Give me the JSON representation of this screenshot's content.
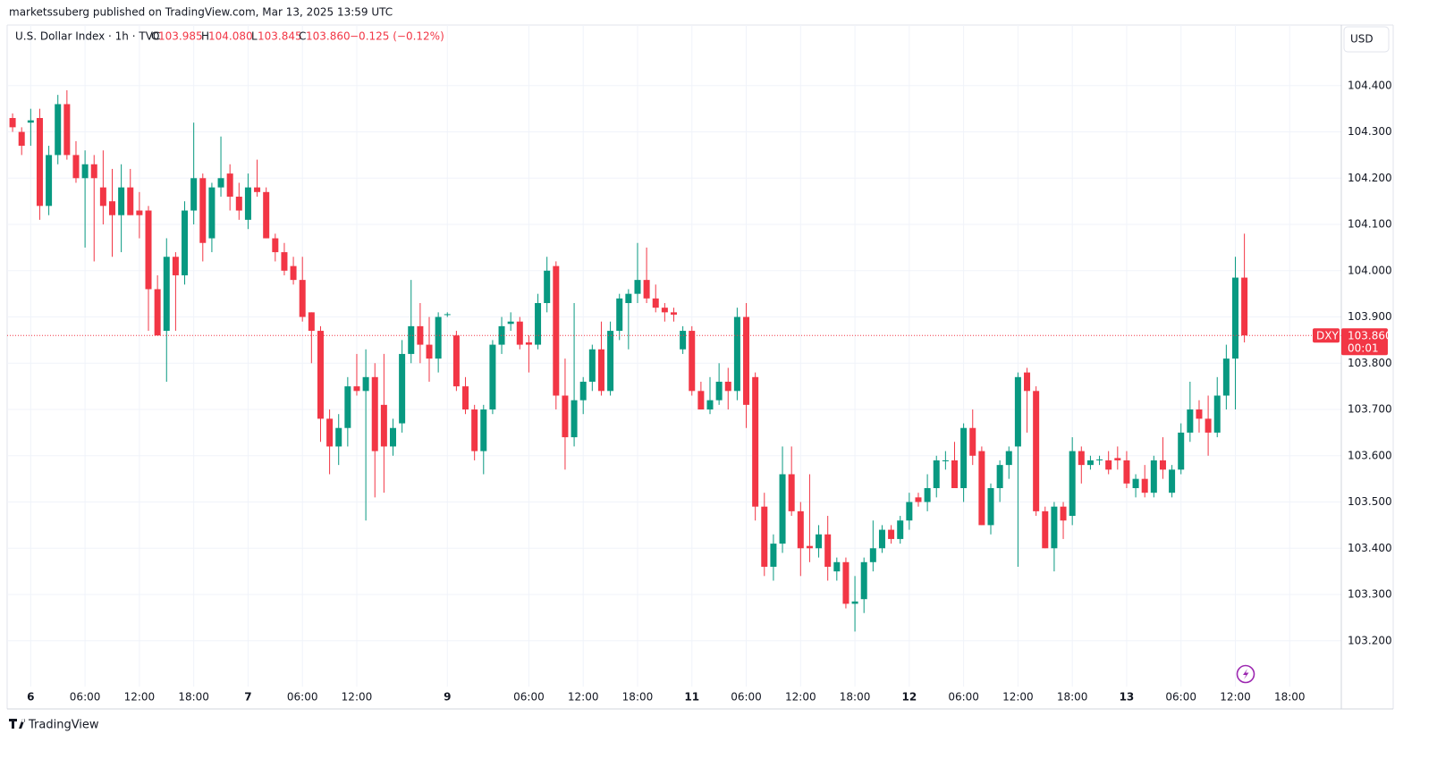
{
  "header": {
    "publisher": "marketssuberg published on TradingView.com, Mar 13, 2025 13:59 UTC"
  },
  "chart_data": {
    "type": "candlestick",
    "title": "U.S. Dollar Index · 1h · TVC",
    "legend": {
      "o": "O",
      "open": "103.985",
      "h": "H",
      "high": "104.080",
      "l": "L",
      "low": "103.845",
      "c": "C",
      "close": "103.860",
      "change": "−0.125 (−0.12%)"
    },
    "currency": "USD",
    "symbol": "DXY",
    "last_price": {
      "value": 103.86,
      "label": "103.860"
    },
    "countdown": "00:01",
    "up_color": "#089981",
    "down_color": "#f23645",
    "grid": true,
    "x": [
      0,
      1,
      2,
      3,
      4,
      5,
      6,
      7,
      8,
      9,
      10,
      11,
      12,
      13,
      14,
      15,
      16,
      17,
      18,
      19,
      20,
      21,
      22,
      23,
      24,
      25,
      26,
      27,
      28,
      29,
      30,
      31,
      32,
      33,
      34,
      35,
      36,
      37,
      38,
      39,
      40,
      41,
      42,
      43,
      44,
      45,
      46,
      47,
      48,
      49,
      50,
      51,
      52,
      53,
      54,
      55,
      56,
      57,
      58,
      59,
      60,
      61,
      62,
      63,
      64,
      65,
      66,
      67,
      68,
      69,
      70,
      71,
      72,
      73,
      74,
      75,
      76,
      77,
      78,
      79,
      80,
      81,
      82,
      83,
      84,
      85,
      86,
      87,
      88,
      89,
      90,
      91,
      92,
      93,
      94,
      95,
      96,
      97,
      98,
      99,
      100,
      101,
      102,
      103,
      104,
      105,
      106,
      107,
      108,
      109,
      110,
      111,
      112,
      113,
      114,
      115,
      116,
      117,
      118,
      119,
      120,
      121,
      122,
      123,
      124,
      125,
      126,
      127,
      128,
      129,
      130,
      131,
      132,
      133,
      134,
      135,
      136
    ],
    "open": [
      104.33,
      104.3,
      104.32,
      104.33,
      104.14,
      104.25,
      104.36,
      104.25,
      104.2,
      104.23,
      104.18,
      104.15,
      104.12,
      104.18,
      104.13,
      104.13,
      103.96,
      103.87,
      104.03,
      103.99,
      104.13,
      104.2,
      104.07,
      104.18,
      104.21,
      104.16,
      104.11,
      104.18,
      104.17,
      104.07,
      104.04,
      104.01,
      103.98,
      103.91,
      103.87,
      103.68,
      103.62,
      103.66,
      103.75,
      103.74,
      103.77,
      103.71,
      103.62,
      103.67,
      103.82,
      103.88,
      103.84,
      103.81,
      103.905,
      103.86,
      103.75,
      103.7,
      103.61,
      103.7,
      103.84,
      103.885,
      103.89,
      103.845,
      103.84,
      103.93,
      104.01,
      103.73,
      103.64,
      103.72,
      103.76,
      103.83,
      103.74,
      103.87,
      103.93,
      103.95,
      103.98,
      103.94,
      103.92,
      103.91,
      103.83,
      103.87,
      103.74,
      103.7,
      103.72,
      103.76,
      103.74,
      103.9,
      103.77,
      103.49,
      103.36,
      103.41,
      103.56,
      103.48,
      103.405,
      103.4,
      103.43,
      103.35,
      103.37,
      103.28,
      103.29,
      103.37,
      103.4,
      103.44,
      103.42,
      103.46,
      103.51,
      103.5,
      103.53,
      103.588,
      103.59,
      103.53,
      103.66,
      103.61,
      103.45,
      103.53,
      103.58,
      103.62,
      103.78,
      103.74,
      103.48,
      103.4,
      103.49,
      103.47,
      103.61,
      103.58,
      103.59,
      103.59,
      103.595,
      103.59,
      103.53,
      103.55,
      103.52,
      103.59,
      103.52,
      103.57,
      103.65,
      103.7,
      103.68,
      103.65,
      103.73,
      103.81,
      103.985
    ],
    "high": [
      104.34,
      104.31,
      104.35,
      104.35,
      104.27,
      104.38,
      104.39,
      104.28,
      104.26,
      104.25,
      104.26,
      104.22,
      104.23,
      104.22,
      104.17,
      104.14,
      103.99,
      104.07,
      104.04,
      104.15,
      104.32,
      104.21,
      104.19,
      104.29,
      104.23,
      104.19,
      104.21,
      104.24,
      104.18,
      104.08,
      104.06,
      104.03,
      104.03,
      103.91,
      103.88,
      103.7,
      103.69,
      103.77,
      103.82,
      103.83,
      103.8,
      103.82,
      103.68,
      103.85,
      103.98,
      103.93,
      103.9,
      103.91,
      103.91,
      103.87,
      103.77,
      103.71,
      103.71,
      103.85,
      103.9,
      103.91,
      103.9,
      103.86,
      103.95,
      104.03,
      104.02,
      103.81,
      103.93,
      103.77,
      103.84,
      103.89,
      103.89,
      103.95,
      103.96,
      104.06,
      104.05,
      103.97,
      103.93,
      103.92,
      103.88,
      103.88,
      103.76,
      103.77,
      103.8,
      103.79,
      103.92,
      103.93,
      103.78,
      103.52,
      103.43,
      103.62,
      103.62,
      103.5,
      103.56,
      103.45,
      103.47,
      103.38,
      103.38,
      103.34,
      103.38,
      103.46,
      103.45,
      103.45,
      103.47,
      103.52,
      103.52,
      103.56,
      103.6,
      103.61,
      103.63,
      103.67,
      103.7,
      103.62,
      103.54,
      103.59,
      103.62,
      103.78,
      103.79,
      103.75,
      103.49,
      103.5,
      103.5,
      103.64,
      103.62,
      103.6,
      103.6,
      103.61,
      103.62,
      103.61,
      103.56,
      103.58,
      103.6,
      103.64,
      103.58,
      103.67,
      103.76,
      103.72,
      103.73,
      103.77,
      103.84,
      104.03,
      104.08
    ],
    "low": [
      104.3,
      104.25,
      104.27,
      104.11,
      104.12,
      104.23,
      104.24,
      104.19,
      104.05,
      104.02,
      104.1,
      104.03,
      104.04,
      104.12,
      104.07,
      103.87,
      103.86,
      103.76,
      103.87,
      103.97,
      104.1,
      104.02,
      104.04,
      104.16,
      104.13,
      104.11,
      104.09,
      104.16,
      104.07,
      104.02,
      103.99,
      103.97,
      103.89,
      103.8,
      103.63,
      103.56,
      103.58,
      103.62,
      103.73,
      103.46,
      103.51,
      103.52,
      103.6,
      103.65,
      103.8,
      103.8,
      103.76,
      103.78,
      103.9,
      103.74,
      103.69,
      103.59,
      103.56,
      103.69,
      103.82,
      103.87,
      103.83,
      103.78,
      103.83,
      103.91,
      103.7,
      103.57,
      103.62,
      103.69,
      103.74,
      103.73,
      103.73,
      103.85,
      103.83,
      103.93,
      103.93,
      103.91,
      103.89,
      103.89,
      103.82,
      103.73,
      103.7,
      103.69,
      103.71,
      103.7,
      103.72,
      103.66,
      103.46,
      103.34,
      103.33,
      103.39,
      103.47,
      103.34,
      103.37,
      103.38,
      103.33,
      103.33,
      103.27,
      103.22,
      103.26,
      103.35,
      103.39,
      103.41,
      103.41,
      103.44,
      103.49,
      103.48,
      103.51,
      103.57,
      103.53,
      103.5,
      103.58,
      103.45,
      103.43,
      103.5,
      103.55,
      103.36,
      103.65,
      103.47,
      103.4,
      103.35,
      103.42,
      103.45,
      103.54,
      103.57,
      103.58,
      103.56,
      103.57,
      103.53,
      103.51,
      103.51,
      103.51,
      103.55,
      103.51,
      103.56,
      103.63,
      103.65,
      103.6,
      103.64,
      103.7,
      103.7,
      103.845
    ],
    "close": [
      104.31,
      104.27,
      104.325,
      104.14,
      104.25,
      104.36,
      104.25,
      104.2,
      104.23,
      104.2,
      104.14,
      104.12,
      104.18,
      104.12,
      104.12,
      103.96,
      103.86,
      104.03,
      103.99,
      104.13,
      104.2,
      104.06,
      104.18,
      104.2,
      104.16,
      104.13,
      104.18,
      104.17,
      104.07,
      104.04,
      104.0,
      103.98,
      103.9,
      103.87,
      103.68,
      103.62,
      103.66,
      103.75,
      103.74,
      103.77,
      103.61,
      103.62,
      103.66,
      103.82,
      103.88,
      103.84,
      103.81,
      103.9,
      103.906,
      103.75,
      103.7,
      103.61,
      103.7,
      103.84,
      103.88,
      103.89,
      103.84,
      103.84,
      103.93,
      104.0,
      103.73,
      103.64,
      103.72,
      103.76,
      103.83,
      103.74,
      103.87,
      103.94,
      103.95,
      103.98,
      103.94,
      103.92,
      103.91,
      103.905,
      103.87,
      103.74,
      103.7,
      103.72,
      103.76,
      103.74,
      103.9,
      103.71,
      103.49,
      103.36,
      103.41,
      103.56,
      103.48,
      103.4,
      103.4,
      103.43,
      103.36,
      103.37,
      103.28,
      103.285,
      103.37,
      103.4,
      103.44,
      103.42,
      103.46,
      103.5,
      103.5,
      103.53,
      103.59,
      103.59,
      103.53,
      103.66,
      103.6,
      103.45,
      103.53,
      103.58,
      103.61,
      103.77,
      103.74,
      103.48,
      103.4,
      103.49,
      103.46,
      103.61,
      103.58,
      103.59,
      103.592,
      103.57,
      103.59,
      103.54,
      103.55,
      103.52,
      103.59,
      103.57,
      103.57,
      103.65,
      103.7,
      103.68,
      103.65,
      103.73,
      103.81,
      103.985,
      103.86
    ],
    "xlim": [
      -0.6,
      146.7
    ],
    "xticks": [
      {
        "value": 2,
        "label": "6"
      },
      {
        "value": 8,
        "label": "06:00"
      },
      {
        "value": 14,
        "label": "12:00"
      },
      {
        "value": 20,
        "label": "18:00"
      },
      {
        "value": 26,
        "label": "7"
      },
      {
        "value": 32,
        "label": "06:00"
      },
      {
        "value": 38,
        "label": "12:00"
      },
      {
        "value": 48,
        "label": "9"
      },
      {
        "value": 57,
        "label": "06:00"
      },
      {
        "value": 63,
        "label": "12:00"
      },
      {
        "value": 69,
        "label": "18:00"
      },
      {
        "value": 75,
        "label": "11"
      },
      {
        "value": 81,
        "label": "06:00"
      },
      {
        "value": 87,
        "label": "12:00"
      },
      {
        "value": 93,
        "label": "18:00"
      },
      {
        "value": 99,
        "label": "12"
      },
      {
        "value": 105,
        "label": "06:00"
      },
      {
        "value": 111,
        "label": "12:00"
      },
      {
        "value": 117,
        "label": "18:00"
      },
      {
        "value": 123,
        "label": "13"
      },
      {
        "value": 129,
        "label": "06:00"
      },
      {
        "value": 135,
        "label": "12:00"
      },
      {
        "value": 141,
        "label": "18:00"
      }
    ],
    "ylim": [
      103.101,
      104.531
    ],
    "yticks": [
      {
        "value": 103.2,
        "label": "103.200"
      },
      {
        "value": 103.3,
        "label": "103.300"
      },
      {
        "value": 103.4,
        "label": "103.400"
      },
      {
        "value": 103.5,
        "label": "103.500"
      },
      {
        "value": 103.6,
        "label": "103.600"
      },
      {
        "value": 103.7,
        "label": "103.700"
      },
      {
        "value": 103.8,
        "label": "103.800"
      },
      {
        "value": 103.9,
        "label": "103.900"
      },
      {
        "value": 104.0,
        "label": "104.000"
      },
      {
        "value": 104.1,
        "label": "104.100"
      },
      {
        "value": 104.2,
        "label": "104.200"
      },
      {
        "value": 104.3,
        "label": "104.300"
      },
      {
        "value": 104.4,
        "label": "104.400"
      }
    ]
  },
  "footer": {
    "brand": "TradingView"
  }
}
